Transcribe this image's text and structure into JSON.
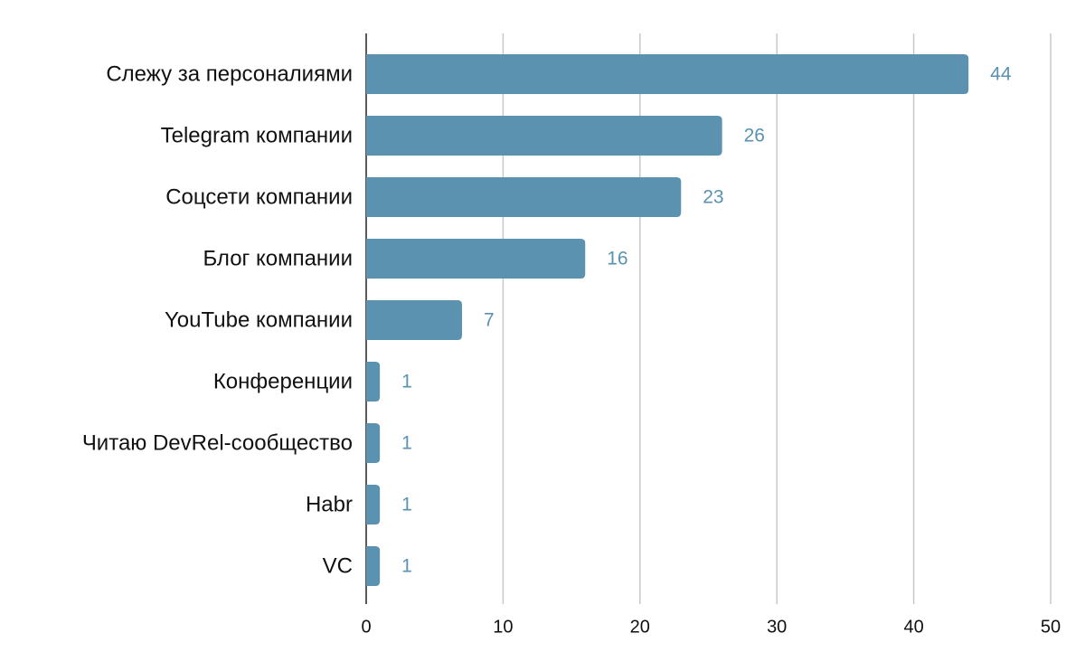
{
  "chart_data": {
    "type": "bar",
    "orientation": "horizontal",
    "categories": [
      "Слежу за персоналиями",
      "Telegram компании",
      "Соцсети компании",
      "Блог компании",
      "YouTube компании",
      "Конференции",
      "Читаю DevRel-сообщество",
      "Habr",
      "VC"
    ],
    "values": [
      44,
      26,
      23,
      16,
      7,
      1,
      1,
      1,
      1
    ],
    "color": "#5a92b0",
    "xlim": [
      0,
      50
    ],
    "xticks": [
      0,
      10,
      20,
      30,
      40,
      50
    ],
    "grid": true
  }
}
